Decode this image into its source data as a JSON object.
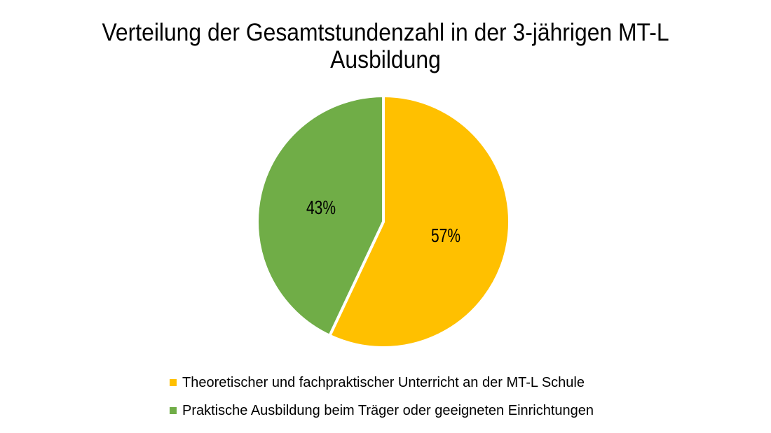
{
  "page": {
    "background_color": "#FFFFFF",
    "text_color": "#000000"
  },
  "chart_data": {
    "type": "pie",
    "title": "Verteilung der Gesamtstundenzahl in der 3-jährigen MT-L Ausbildung",
    "slices": [
      {
        "label": "Theoretischer und fachpraktischer Unterricht an der MT-L Schule",
        "value": 57,
        "display": "57%",
        "color": "#FFC000"
      },
      {
        "label": "Praktische Ausbildung beim Träger oder geeigneten Einrichtungen",
        "value": 43,
        "display": "43%",
        "color": "#70AD47"
      }
    ],
    "start_angle_deg": 0,
    "direction": "clockwise",
    "divider_color": "#FFFFFF",
    "label_color": "#000000",
    "legend_position": "bottom",
    "grid": "off"
  }
}
